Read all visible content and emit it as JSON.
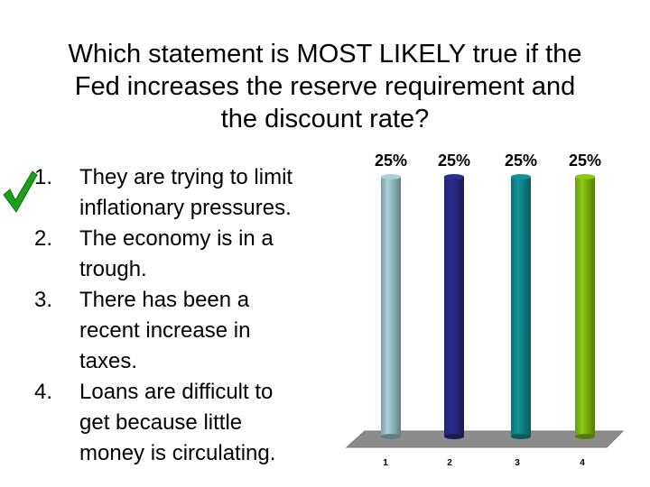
{
  "question": {
    "lines": [
      "Which statement is MOST LIKELY true if the",
      "Fed increases the reserve requirement and",
      "the discount rate?"
    ]
  },
  "answers": [
    {
      "number": "1.",
      "lines": [
        "They are trying to limit",
        "inflationary pressures."
      ],
      "correct": true
    },
    {
      "number": "2.",
      "lines": [
        "The economy is in a",
        "trough."
      ],
      "correct": false
    },
    {
      "number": "3.",
      "lines": [
        "There has been a",
        "recent increase in",
        "taxes."
      ],
      "correct": false
    },
    {
      "number": "4.",
      "lines": [
        "Loans are difficult to",
        "get because little",
        "money is circulating."
      ],
      "correct": false
    }
  ],
  "icons": {
    "correct_marker": "checkmark-icon"
  },
  "chart_data": {
    "type": "bar",
    "categories": [
      "1",
      "2",
      "3",
      "4"
    ],
    "values": [
      25,
      25,
      25,
      25
    ],
    "data_labels": [
      "25%",
      "25%",
      "25%",
      "25%"
    ],
    "ylim": [
      0,
      25
    ],
    "grid": false,
    "colors": [
      "#a9d1d9",
      "#2b2f8f",
      "#12959a",
      "#8ccc10"
    ],
    "floor_color": "#8c8c8c"
  }
}
